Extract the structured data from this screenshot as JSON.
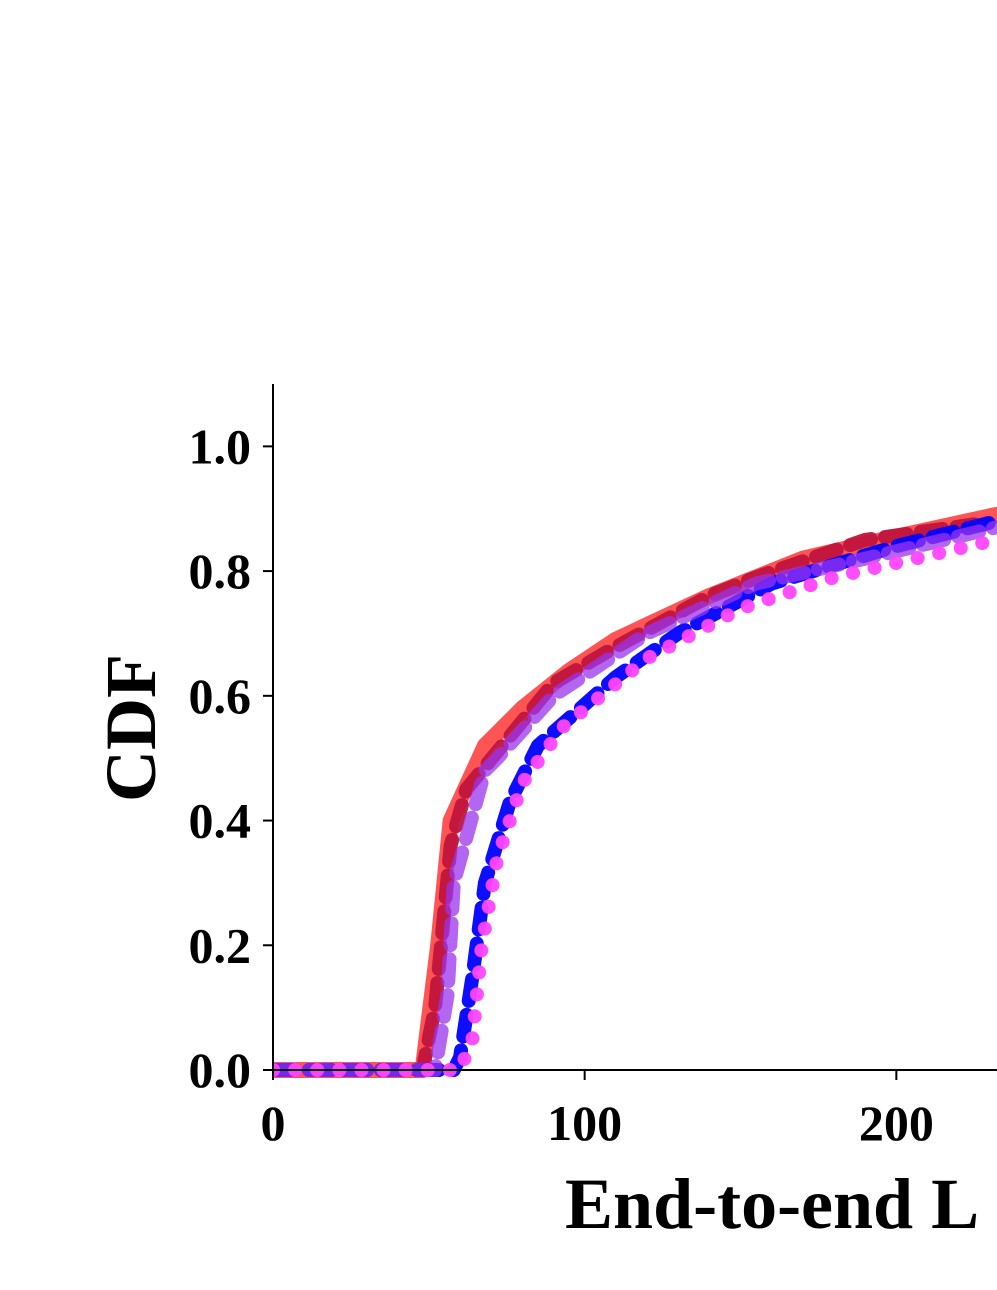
{
  "chart_data": {
    "type": "line",
    "x_label": "End-to-end L",
    "y_label": "CDF",
    "xlim": [
      0,
      232.3
    ],
    "ylim": [
      0,
      1.1
    ],
    "xticks": [
      0,
      100,
      200
    ],
    "yticks": [
      {
        "value": 0,
        "label": "0.0"
      },
      {
        "value": 0.2,
        "label": "0.2"
      },
      {
        "value": 0.4,
        "label": "0.4"
      },
      {
        "value": 0.6,
        "label": "0.6"
      },
      {
        "value": 0.8,
        "label": "0.8"
      },
      {
        "value": 1,
        "label": "1.0"
      }
    ],
    "series": [
      {
        "color": "#ff4b4b",
        "style": "solid",
        "x": [
          0,
          48,
          53,
          57,
          68,
          80,
          95,
          110,
          140,
          170,
          200,
          232
        ],
        "values": [
          0,
          0,
          0.2,
          0.4,
          0.52,
          0.58,
          0.64,
          0.69,
          0.76,
          0.82,
          0.855,
          0.89
        ]
      },
      {
        "color": "#c0143c",
        "style": "dash",
        "x": [
          0,
          48,
          52,
          57,
          62,
          90,
          107,
          140,
          155,
          190,
          225
        ],
        "values": [
          0,
          0,
          0.1,
          0.36,
          0.45,
          0.62,
          0.67,
          0.76,
          0.79,
          0.85,
          0.875
        ]
      },
      {
        "color": "#0000ff",
        "style": "dash",
        "x": [
          0,
          58,
          60,
          64,
          68,
          76,
          85,
          110,
          130,
          160,
          200,
          232
        ],
        "values": [
          0,
          0,
          0.02,
          0.15,
          0.3,
          0.43,
          0.52,
          0.63,
          0.7,
          0.78,
          0.84,
          0.88
        ]
      },
      {
        "color": "#9933ee",
        "style": "dash",
        "x": [
          0,
          52,
          56,
          58,
          68,
          72,
          90,
          120,
          155,
          190,
          232
        ],
        "values": [
          0,
          0,
          0.12,
          0.3,
          0.48,
          0.5,
          0.6,
          0.7,
          0.78,
          0.82,
          0.87
        ]
      },
      {
        "color": "#ff44ff",
        "style": "dot",
        "x": [
          0,
          60,
          64,
          67,
          72,
          80,
          93,
          120,
          150,
          180,
          232
        ],
        "values": [
          0,
          0,
          0.05,
          0.2,
          0.34,
          0.46,
          0.55,
          0.66,
          0.74,
          0.79,
          0.85
        ]
      }
    ]
  }
}
